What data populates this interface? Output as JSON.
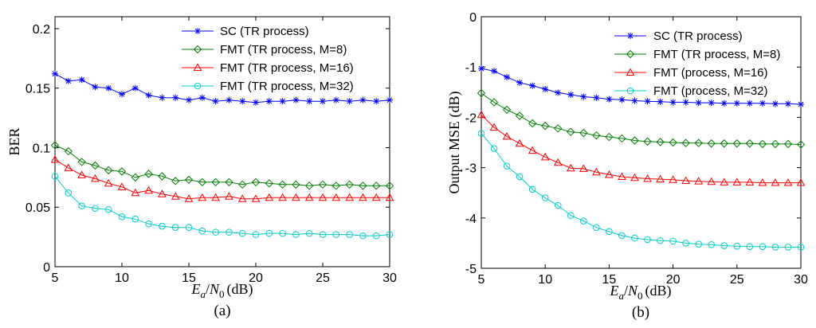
{
  "chart_data": [
    {
      "type": "line",
      "panel_label": "(a)",
      "xlabel_parts": {
        "e": "E",
        "a": "a",
        "slash": "/",
        "n": "N",
        "zero": "0",
        "unit": "(dB)"
      },
      "ylabel": "BER",
      "xlim": [
        5,
        30
      ],
      "ylim": [
        0,
        0.21
      ],
      "x_ticks": [
        "5",
        "10",
        "15",
        "20",
        "25",
        "30"
      ],
      "y_ticks": [
        "0",
        "0.05",
        "0.1",
        "0.15",
        "0.2"
      ],
      "legend_position": "top-right",
      "x": [
        5,
        6,
        7,
        8,
        9,
        10,
        11,
        12,
        13,
        14,
        15,
        16,
        17,
        18,
        19,
        20,
        21,
        22,
        23,
        24,
        25,
        26,
        27,
        28,
        29,
        30
      ],
      "series": [
        {
          "name": "SC (TR process)",
          "color": "#0000ff",
          "marker": "star",
          "values": [
            0.162,
            0.156,
            0.157,
            0.151,
            0.15,
            0.145,
            0.15,
            0.144,
            0.142,
            0.142,
            0.14,
            0.142,
            0.139,
            0.14,
            0.139,
            0.138,
            0.139,
            0.139,
            0.14,
            0.139,
            0.139,
            0.14,
            0.139,
            0.14,
            0.139,
            0.14
          ]
        },
        {
          "name": "FMT (TR process, M=8)",
          "color": "#008000",
          "marker": "diamond",
          "values": [
            0.102,
            0.097,
            0.088,
            0.085,
            0.081,
            0.08,
            0.075,
            0.078,
            0.076,
            0.072,
            0.073,
            0.071,
            0.071,
            0.071,
            0.069,
            0.071,
            0.07,
            0.069,
            0.069,
            0.068,
            0.069,
            0.068,
            0.069,
            0.068,
            0.068,
            0.068
          ]
        },
        {
          "name": "FMT (TR process, M=16)",
          "color": "#ff0000",
          "marker": "triangle",
          "values": [
            0.09,
            0.083,
            0.077,
            0.074,
            0.07,
            0.067,
            0.062,
            0.064,
            0.061,
            0.059,
            0.057,
            0.058,
            0.058,
            0.059,
            0.057,
            0.057,
            0.058,
            0.058,
            0.058,
            0.058,
            0.058,
            0.058,
            0.058,
            0.058,
            0.058,
            0.058
          ]
        },
        {
          "name": "FMT (TR process, M=32)",
          "color": "#00cccc",
          "marker": "circle",
          "values": [
            0.076,
            0.062,
            0.051,
            0.049,
            0.048,
            0.042,
            0.04,
            0.036,
            0.034,
            0.033,
            0.033,
            0.03,
            0.029,
            0.029,
            0.028,
            0.027,
            0.028,
            0.028,
            0.027,
            0.028,
            0.027,
            0.027,
            0.027,
            0.026,
            0.026,
            0.027
          ]
        }
      ]
    },
    {
      "type": "line",
      "panel_label": "(b)",
      "xlabel_parts": {
        "e": "E",
        "a": "a",
        "slash": "/",
        "n": "N",
        "zero": "0",
        "unit": "(dB)"
      },
      "ylabel": "Output MSE (dB)",
      "xlim": [
        5,
        30
      ],
      "ylim": [
        -5,
        0
      ],
      "x_ticks": [
        "5",
        "10",
        "15",
        "20",
        "25",
        "30"
      ],
      "y_ticks": [
        "-5",
        "-4",
        "-3",
        "-2",
        "-1",
        "0"
      ],
      "legend_position": "top-right",
      "x": [
        5,
        6,
        7,
        8,
        9,
        10,
        11,
        12,
        13,
        14,
        15,
        16,
        17,
        18,
        19,
        20,
        21,
        22,
        23,
        24,
        25,
        26,
        27,
        28,
        29,
        30
      ],
      "series": [
        {
          "name": "SC (TR process)",
          "color": "#0000ff",
          "marker": "star",
          "values": [
            -1.03,
            -1.08,
            -1.2,
            -1.31,
            -1.37,
            -1.44,
            -1.51,
            -1.55,
            -1.59,
            -1.61,
            -1.64,
            -1.65,
            -1.67,
            -1.68,
            -1.69,
            -1.7,
            -1.7,
            -1.71,
            -1.71,
            -1.72,
            -1.72,
            -1.72,
            -1.72,
            -1.73,
            -1.73,
            -1.74
          ]
        },
        {
          "name": "FMT (TR process, M=8)",
          "color": "#008000",
          "marker": "diamond",
          "values": [
            -1.52,
            -1.7,
            -1.85,
            -1.97,
            -2.12,
            -2.17,
            -2.22,
            -2.29,
            -2.31,
            -2.36,
            -2.39,
            -2.42,
            -2.46,
            -2.48,
            -2.49,
            -2.5,
            -2.51,
            -2.51,
            -2.52,
            -2.52,
            -2.52,
            -2.52,
            -2.53,
            -2.53,
            -2.53,
            -2.54
          ]
        },
        {
          "name": "FMT (process, M=16)",
          "color": "#ff0000",
          "marker": "triangle",
          "values": [
            -1.95,
            -2.2,
            -2.38,
            -2.52,
            -2.66,
            -2.79,
            -2.9,
            -3.01,
            -3.02,
            -3.09,
            -3.14,
            -3.18,
            -3.2,
            -3.22,
            -3.23,
            -3.24,
            -3.26,
            -3.27,
            -3.28,
            -3.29,
            -3.29,
            -3.29,
            -3.3,
            -3.3,
            -3.3,
            -3.3
          ]
        },
        {
          "name": "FMT (process, M=32)",
          "color": "#00cccc",
          "marker": "circle",
          "values": [
            -2.32,
            -2.62,
            -2.97,
            -3.18,
            -3.43,
            -3.6,
            -3.75,
            -3.95,
            -4.06,
            -4.19,
            -4.27,
            -4.35,
            -4.4,
            -4.43,
            -4.45,
            -4.46,
            -4.5,
            -4.52,
            -4.53,
            -4.55,
            -4.56,
            -4.57,
            -4.57,
            -4.58,
            -4.58,
            -4.58
          ]
        }
      ]
    }
  ]
}
